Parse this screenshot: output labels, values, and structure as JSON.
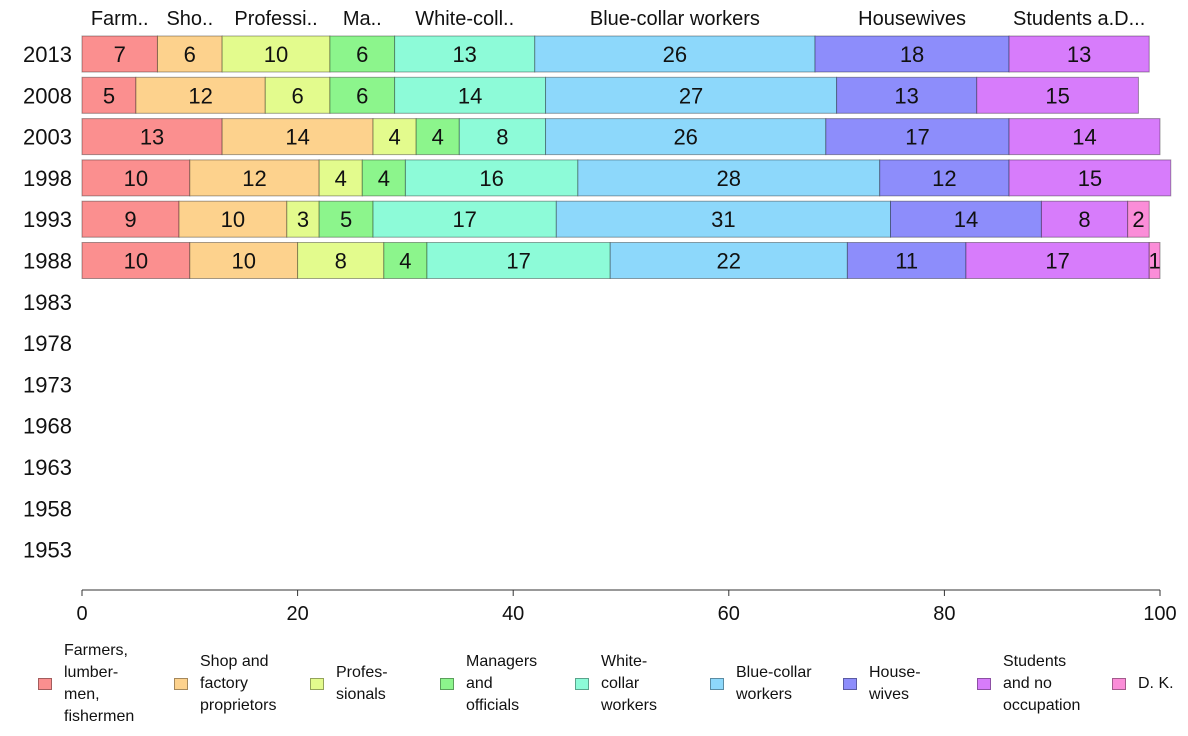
{
  "chart_data": {
    "type": "bar",
    "orientation": "horizontal",
    "stacked": true,
    "categories": [
      "1953",
      "1958",
      "1963",
      "1968",
      "1973",
      "1978",
      "1983",
      "1988",
      "1993",
      "1998",
      "2003",
      "2008",
      "2013"
    ],
    "top_labels": [
      "Farm..",
      "Sho..",
      "Professi..",
      "Ma..",
      "White-coll..",
      "Blue-collar workers",
      "Housewives",
      "Students a.D..."
    ],
    "series": [
      {
        "name": "Farmers,\nlumber-\nmen,\nfishermen",
        "color": "#fb8f8f",
        "values": [
          null,
          null,
          null,
          null,
          null,
          null,
          null,
          10,
          9,
          10,
          13,
          5,
          7
        ]
      },
      {
        "name": "Shop and\nfactory\nproprietors",
        "color": "#fdd28d",
        "values": [
          null,
          null,
          null,
          null,
          null,
          null,
          null,
          10,
          10,
          12,
          14,
          12,
          6
        ]
      },
      {
        "name": "Profes-\nsionals",
        "color": "#e3fb8d",
        "values": [
          null,
          null,
          null,
          null,
          null,
          null,
          null,
          8,
          3,
          4,
          4,
          6,
          10
        ]
      },
      {
        "name": "Managers\nand\nofficials",
        "color": "#8cf58c",
        "values": [
          null,
          null,
          null,
          null,
          null,
          null,
          null,
          4,
          5,
          4,
          4,
          6,
          6
        ]
      },
      {
        "name": "White-\ncollar\nworkers",
        "color": "#8dfbd8",
        "values": [
          null,
          null,
          null,
          null,
          null,
          null,
          null,
          17,
          17,
          16,
          8,
          14,
          13
        ]
      },
      {
        "name": "Blue-collar\nworkers",
        "color": "#8dd8fb",
        "values": [
          null,
          null,
          null,
          null,
          null,
          null,
          null,
          22,
          31,
          28,
          26,
          27,
          26
        ]
      },
      {
        "name": "House-\nwives",
        "color": "#8d8dfb",
        "values": [
          null,
          null,
          null,
          null,
          null,
          null,
          null,
          11,
          14,
          12,
          17,
          13,
          18
        ]
      },
      {
        "name": "Students\nand no\noccupation",
        "color": "#d77cfb",
        "values": [
          null,
          null,
          null,
          null,
          null,
          null,
          null,
          17,
          8,
          15,
          14,
          15,
          13
        ]
      },
      {
        "name": "D. K.",
        "color": "#fb8dd8",
        "values": [
          null,
          null,
          null,
          null,
          null,
          null,
          null,
          1,
          2,
          0,
          0,
          0,
          0
        ]
      }
    ],
    "xlim": [
      0,
      100
    ],
    "xticks": [
      0,
      20,
      40,
      60,
      80,
      100
    ],
    "xlabel": "",
    "ylabel": "",
    "title": "",
    "grid": false,
    "legend_position": "bottom"
  }
}
